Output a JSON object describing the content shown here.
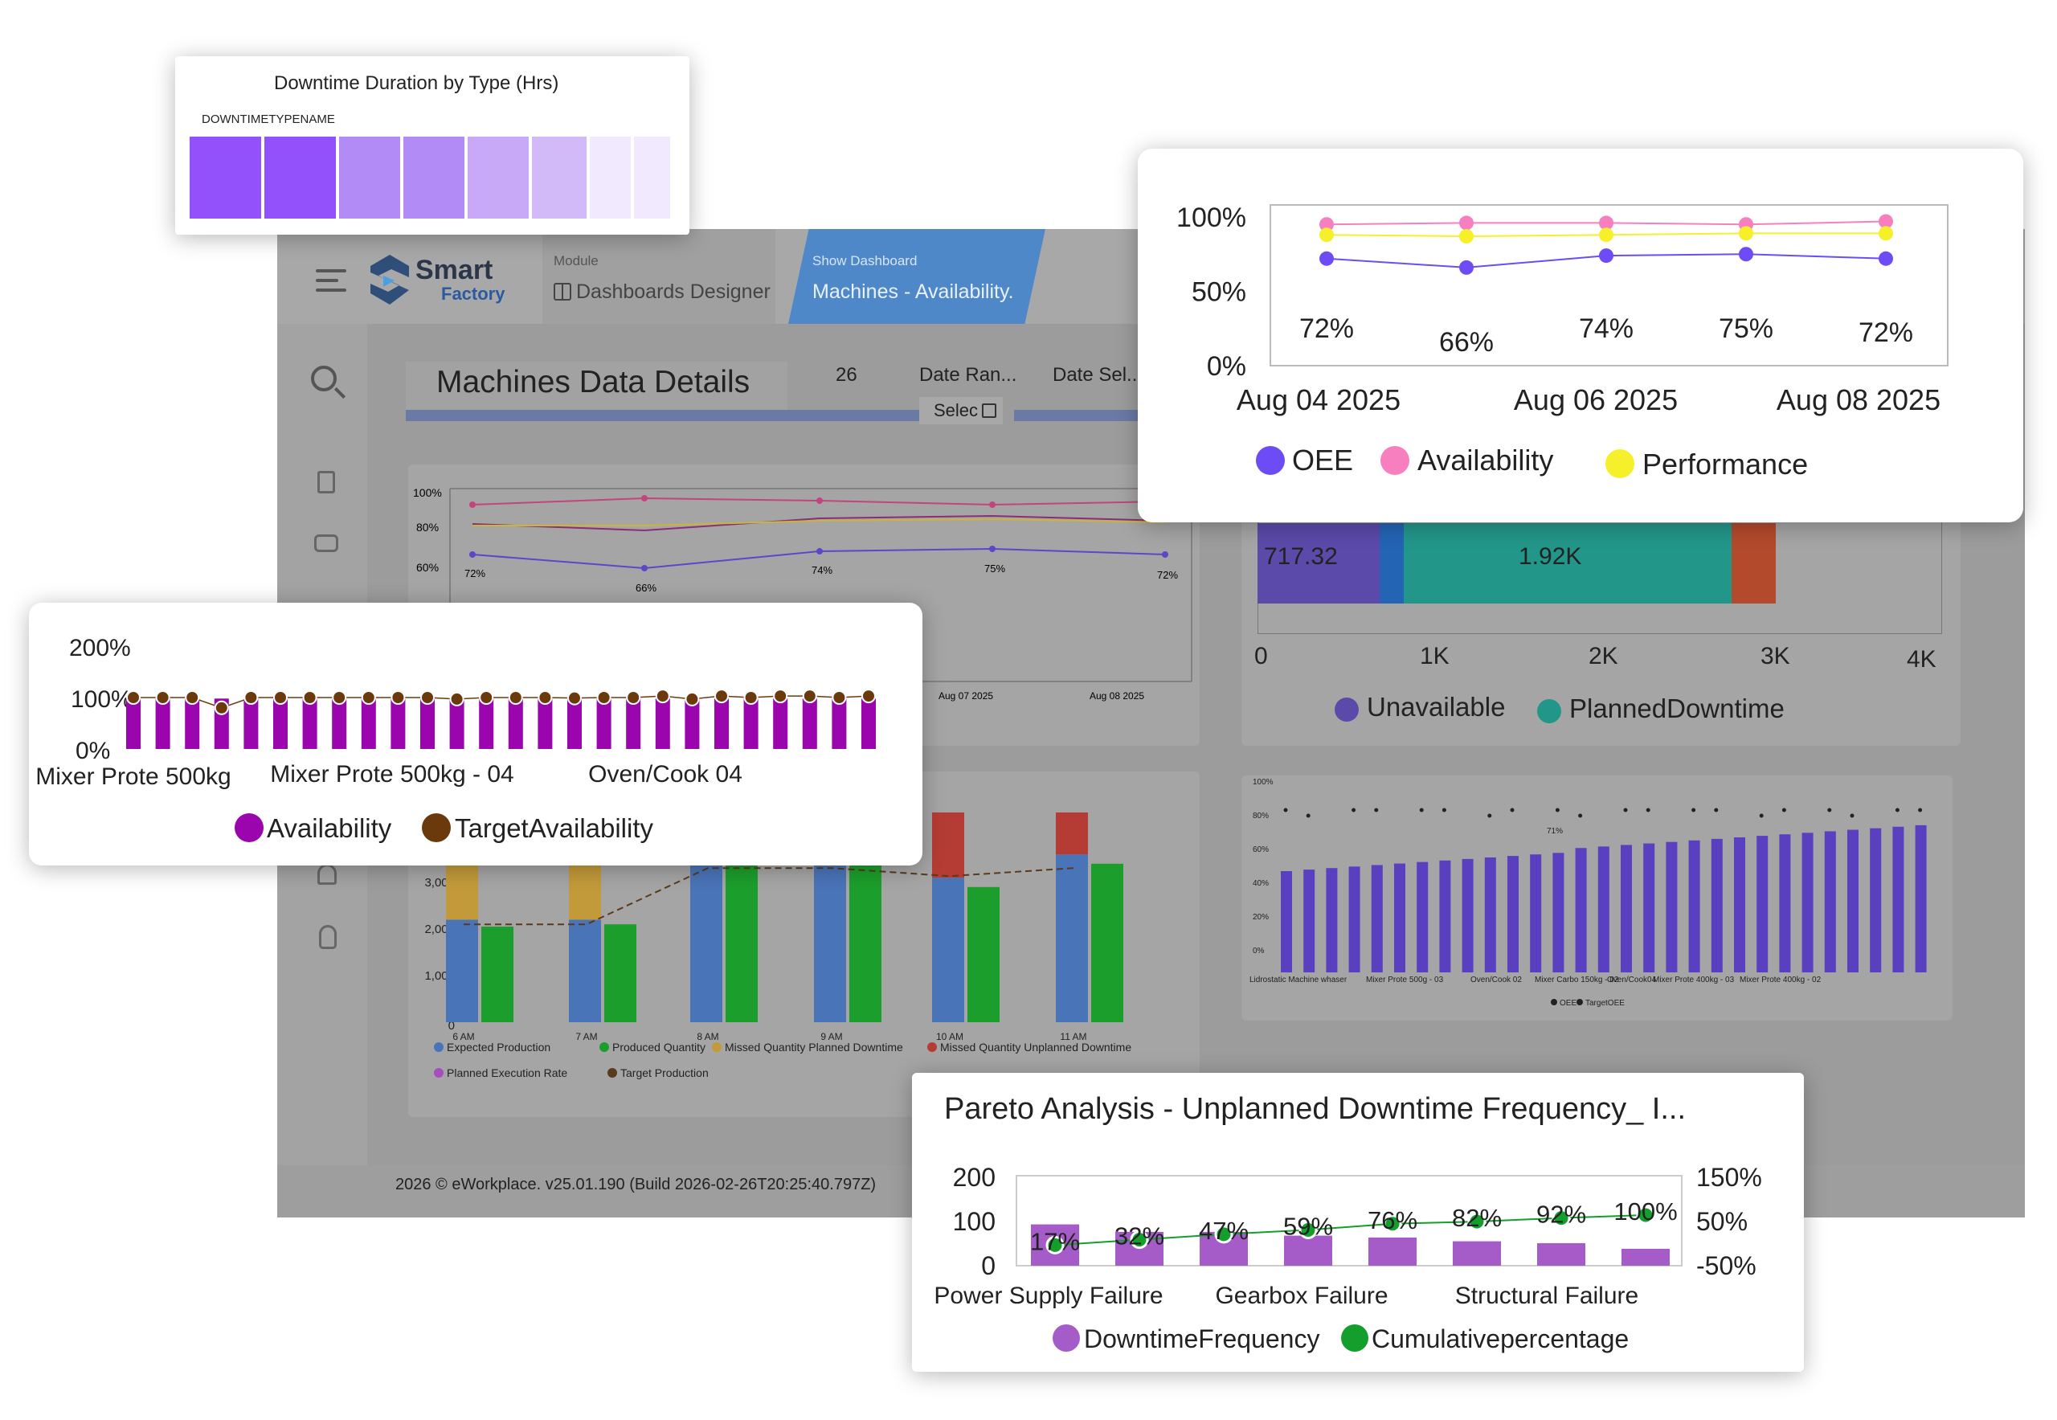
{
  "app": {
    "logo_top": "Smart",
    "logo_bottom": "Factory",
    "module_caption": "Module",
    "module_name": "Dashboards Designer",
    "show_caption": "Show Dashboard",
    "show_name": "Machines - Availability.",
    "page_title": "Machines Data Details",
    "filter_count": "26",
    "date_range_label": "Date Ran...",
    "date_range_value": "Selec",
    "date_sel_label": "Date Sel...",
    "footer": "2026 © eWorkplace. v25.01.190 (Build 2026-02-26T20:25:40.797Z)"
  },
  "bg_line_chart": {
    "y_ticks": [
      "100%",
      "80%",
      "60%"
    ],
    "labels": [
      "72%",
      "66%",
      "74%",
      "75%",
      "72%"
    ],
    "x_dates": [
      "Aug 07 2025",
      "Aug 08 2025"
    ]
  },
  "bg_production_chart": {
    "y_ticks": [
      "3,000",
      "2,000",
      "1,000",
      "0"
    ],
    "hours": [
      "6 AM",
      "7 AM",
      "8 AM",
      "9 AM",
      "10 AM",
      "11 AM"
    ],
    "legend": [
      "Expected Production",
      "Produced Quantity",
      "Missed Quantity Planned Downtime",
      "Missed Quantity Unplanned Downtime",
      "Planned Execution Rate",
      "Target Production"
    ],
    "colors": [
      "#4a74b8",
      "#1c9e2c",
      "#c29a3a",
      "#b53c34",
      "#a64dbf",
      "#5a3a1c"
    ]
  },
  "bg_oee_bars": {
    "y_ticks": [
      "100%",
      "80%",
      "60%",
      "40%",
      "20%",
      "0%"
    ],
    "x_labels": [
      "Lidrostatic Machine whaser",
      "Mixer Prote 500g - 03",
      "Oven/Cook 02",
      "Mixer Carbo 150kg - 02",
      "Oven/Cook04",
      "Mixer Prote 400kg - 03",
      "Mixer Prote 400kg - 02"
    ],
    "legend": [
      "OEE",
      "TargetOEE"
    ],
    "point_label": "71%"
  },
  "bg_stacked_bar": {
    "values_shown": [
      "717.32",
      "1.92K"
    ],
    "x_ticks": [
      "0",
      "1K",
      "2K",
      "3K",
      "4K"
    ],
    "legend": [
      "Unavailable",
      "PlannedDowntime"
    ]
  },
  "downtime_card": {
    "title": "Downtime Duration by Type (Hrs)",
    "field": "DOWNTIMETYPENAME",
    "tiles": [
      "#9351fb",
      "#9351fb",
      "#b38bf6",
      "#b38bf6",
      "#c7a9f8",
      "#d2baf9",
      "#f1e9fd",
      "#f1e9fd"
    ]
  },
  "oee_card": {
    "chart_data": {
      "type": "line",
      "x_ticks": [
        "Aug 04 2025",
        "Aug 06 2025",
        "Aug 08 2025"
      ],
      "y_ticks": [
        "100%",
        "50%",
        "0%"
      ],
      "ylim": [
        0,
        100
      ],
      "series": [
        {
          "name": "OEE",
          "color": "#6e4cf5",
          "values": [
            72,
            66,
            74,
            75,
            72
          ]
        },
        {
          "name": "Availability",
          "color": "#f77fbf",
          "values": [
            95,
            96,
            96,
            95,
            97
          ]
        },
        {
          "name": "Performance",
          "color": "#f5f02a",
          "values": [
            88,
            87,
            88,
            89,
            89
          ]
        }
      ],
      "data_labels": [
        "72%",
        "66%",
        "74%",
        "75%",
        "72%"
      ]
    }
  },
  "availability_card": {
    "chart_data": {
      "type": "bar",
      "y_ticks": [
        "200%",
        "100%",
        "0%"
      ],
      "ylim": [
        0,
        200
      ],
      "x_labels": [
        "Mixer Prote 500kg",
        "Mixer Prote 500kg - 04",
        "Oven/Cook 04"
      ],
      "series": [
        {
          "name": "Availability",
          "color": "#9a05ad",
          "values": [
            98,
            98,
            98,
            98,
            98,
            98,
            98,
            98,
            98,
            98,
            98,
            98,
            98,
            98,
            98,
            98,
            98,
            98,
            98,
            98,
            98,
            98,
            98,
            98,
            98,
            98
          ]
        },
        {
          "name": "TargetAvailability",
          "color": "#6b3a0c",
          "values": [
            100,
            100,
            100,
            80,
            100,
            100,
            100,
            100,
            100,
            100,
            100,
            97,
            100,
            100,
            100,
            99,
            100,
            100,
            103,
            97,
            103,
            100,
            103,
            103,
            100,
            103
          ]
        }
      ]
    }
  },
  "pareto_card": {
    "title": "Pareto Analysis - Unplanned Downtime Frequency_ I...",
    "chart_data": {
      "type": "bar",
      "y_ticks_left": [
        "200",
        "100",
        "0"
      ],
      "y_ticks_right": [
        "150%",
        "50%",
        "-50%"
      ],
      "ylim_left": [
        0,
        200
      ],
      "ylim_right": [
        -50,
        150
      ],
      "x_labels": [
        "Power Supply Failure",
        "Gearbox Failure",
        "Structural Failure"
      ],
      "categories_count": 8,
      "series": [
        {
          "name": "DowntimeFrequency",
          "color": "#a55cc8",
          "values": [
            110,
            90,
            90,
            80,
            75,
            65,
            60,
            45
          ]
        },
        {
          "name": "Cumulativepercentage",
          "color": "#149e2c",
          "values": [
            17,
            32,
            47,
            59,
            76,
            82,
            92,
            100
          ]
        }
      ],
      "data_labels": [
        "17%",
        "32%",
        "47%",
        "59%",
        "76%",
        "82%",
        "92%",
        "100%"
      ]
    }
  }
}
